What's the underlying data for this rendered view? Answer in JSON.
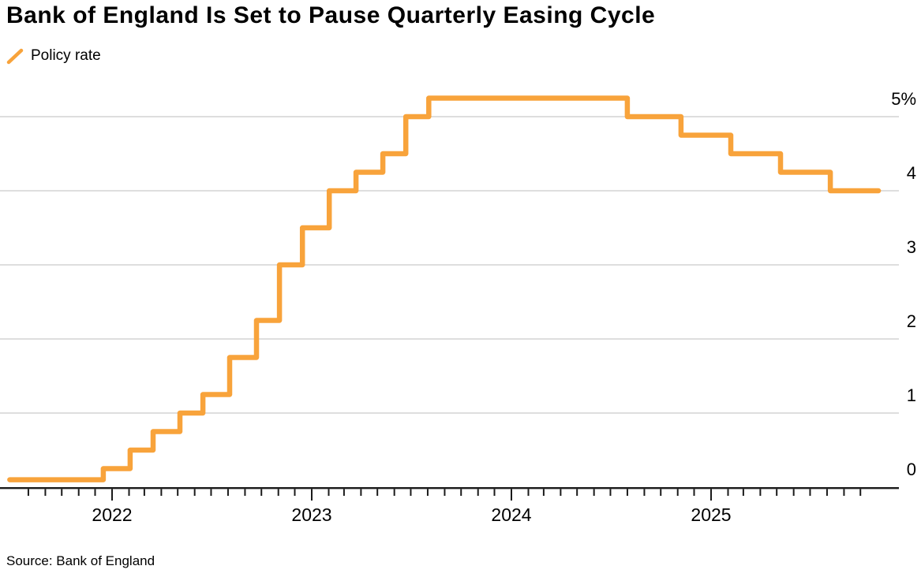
{
  "header": {
    "title": "Bank of England Is Set to Pause Quarterly Easing Cycle"
  },
  "legend": {
    "label": "Policy rate"
  },
  "footer": {
    "source": "Source: Bank of England"
  },
  "colors": {
    "line": "#F8A33B",
    "grid": "#D4D4D4",
    "axis": "#1A1A1A",
    "text": "#000000"
  },
  "chart_data": {
    "type": "line",
    "subtype": "step-after",
    "title": "Bank of England Is Set to Pause Quarterly Easing Cycle",
    "legend_entries": [
      "Policy rate"
    ],
    "legend_position": "top-left",
    "grid": true,
    "unit": "%",
    "ylim": [
      0,
      5.5
    ],
    "xlim": [
      "2021-06",
      "2025-12"
    ],
    "y_axis": {
      "side": "right",
      "ticks": [
        {
          "label": "5%",
          "value": 5
        },
        {
          "label": "4",
          "value": 4
        },
        {
          "label": "3",
          "value": 3
        },
        {
          "label": "2",
          "value": 2
        },
        {
          "label": "1",
          "value": 1
        },
        {
          "label": "0",
          "value": 0
        }
      ]
    },
    "x_axis": {
      "tick_interval": "month",
      "first_tick": "2021-08-01",
      "last_tick": "2025-10-01",
      "year_ticks": [
        "2022",
        "2023",
        "2024",
        "2025"
      ]
    },
    "series": [
      {
        "name": "Policy rate",
        "points": [
          {
            "date": "2021-06-28",
            "value": 0.1
          },
          {
            "date": "2021-12-16",
            "value": 0.25
          },
          {
            "date": "2022-02-03",
            "value": 0.5
          },
          {
            "date": "2022-03-17",
            "value": 0.75
          },
          {
            "date": "2022-05-05",
            "value": 1.0
          },
          {
            "date": "2022-06-16",
            "value": 1.25
          },
          {
            "date": "2022-08-04",
            "value": 1.75
          },
          {
            "date": "2022-09-22",
            "value": 2.25
          },
          {
            "date": "2022-11-03",
            "value": 3.0
          },
          {
            "date": "2022-12-15",
            "value": 3.5
          },
          {
            "date": "2023-02-02",
            "value": 4.0
          },
          {
            "date": "2023-03-23",
            "value": 4.25
          },
          {
            "date": "2023-05-11",
            "value": 4.5
          },
          {
            "date": "2023-06-22",
            "value": 5.0
          },
          {
            "date": "2023-08-03",
            "value": 5.25
          },
          {
            "date": "2024-08-01",
            "value": 5.0
          },
          {
            "date": "2024-11-07",
            "value": 4.75
          },
          {
            "date": "2025-02-06",
            "value": 4.5
          },
          {
            "date": "2025-05-08",
            "value": 4.25
          },
          {
            "date": "2025-08-07",
            "value": 4.0
          },
          {
            "date": "2025-11-03",
            "value": 4.0
          }
        ]
      }
    ]
  }
}
